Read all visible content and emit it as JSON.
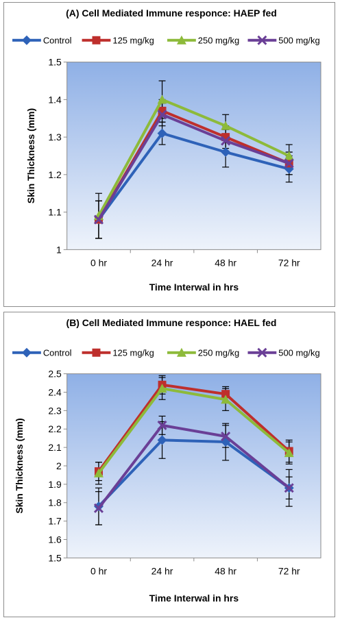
{
  "chart_data": [
    {
      "type": "line",
      "title": "(A) Cell Mediated Immune responce: HAEP fed",
      "xlabel": "Time Interwal in hrs",
      "ylabel": "Skin Thickness (mm)",
      "categories": [
        "0 hr",
        "24 hr",
        "48 hr",
        "72 hr"
      ],
      "ylim": [
        1,
        1.5
      ],
      "yticks": [
        "1",
        "1.1",
        "1.2",
        "1.3",
        "1.4",
        "1.5"
      ],
      "legend_position": "top",
      "series": [
        {
          "name": "Control",
          "color": "#2E62B8",
          "marker": "diamond",
          "values": [
            1.08,
            1.31,
            1.26,
            1.215
          ],
          "errors": [
            0.05,
            0.03,
            0.04,
            0.035
          ]
        },
        {
          "name": "125 mg/kg",
          "color": "#BE2F2C",
          "marker": "square",
          "values": [
            1.08,
            1.37,
            1.3,
            1.23
          ],
          "errors": [
            0.05,
            0.03,
            0.03,
            0.03
          ]
        },
        {
          "name": "250 mg/kg",
          "color": "#8DBA3A",
          "marker": "triangle",
          "values": [
            1.09,
            1.4,
            1.33,
            1.25
          ],
          "errors": [
            0.06,
            0.05,
            0.03,
            0.03
          ]
        },
        {
          "name": "500 mg/kg",
          "color": "#6A3F96",
          "marker": "x",
          "values": [
            1.08,
            1.36,
            1.29,
            1.23
          ],
          "errors": [
            0.05,
            0.03,
            0.03,
            0.03
          ]
        }
      ]
    },
    {
      "type": "line",
      "title": "(B) Cell Mediated Immune responce: HAEL fed",
      "xlabel": "Time Interwal in hrs",
      "ylabel": "Skin Thickness (mm)",
      "categories": [
        "0 hr",
        "24 hr",
        "48 hr",
        "72 hr"
      ],
      "ylim": [
        1.5,
        2.5
      ],
      "yticks": [
        "1.5",
        "1.6",
        "1.7",
        "1.8",
        "1.9",
        "2",
        "2.1",
        "2.2",
        "2.3",
        "2.4",
        "2.5"
      ],
      "legend_position": "top",
      "series": [
        {
          "name": "Control",
          "color": "#2E62B8",
          "marker": "diamond",
          "values": [
            1.78,
            2.14,
            2.13,
            1.88
          ],
          "errors": [
            0.1,
            0.1,
            0.1,
            0.1
          ]
        },
        {
          "name": "125 mg/kg",
          "color": "#BE2F2C",
          "marker": "square",
          "values": [
            1.97,
            2.44,
            2.39,
            2.08
          ],
          "errors": [
            0.05,
            0.05,
            0.04,
            0.06
          ]
        },
        {
          "name": "250 mg/kg",
          "color": "#8DBA3A",
          "marker": "triangle",
          "values": [
            1.96,
            2.42,
            2.36,
            2.07
          ],
          "errors": [
            0.06,
            0.06,
            0.06,
            0.06
          ]
        },
        {
          "name": "500 mg/kg",
          "color": "#6A3F96",
          "marker": "x",
          "values": [
            1.77,
            2.22,
            2.16,
            1.88
          ],
          "errors": [
            0.09,
            0.05,
            0.06,
            0.06
          ]
        }
      ]
    }
  ]
}
